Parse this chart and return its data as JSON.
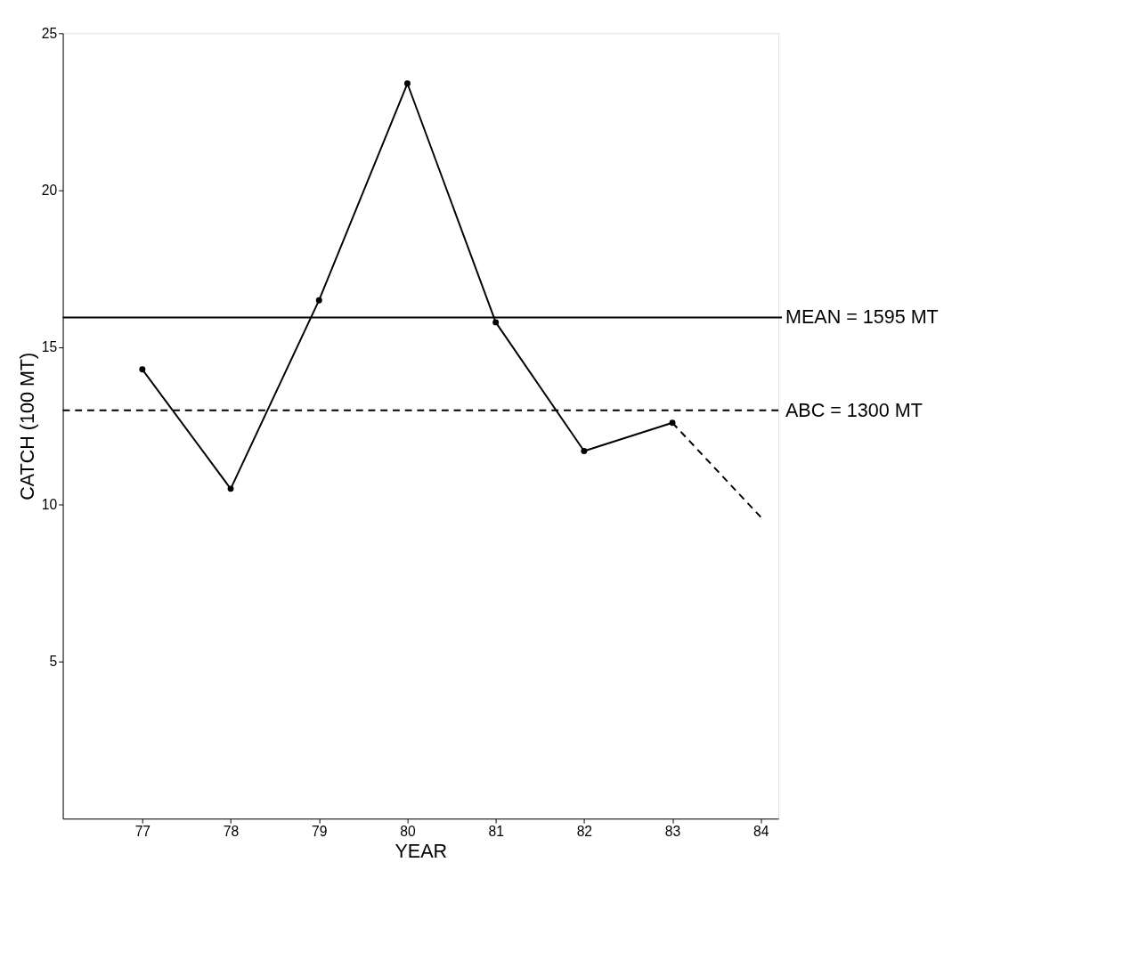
{
  "chart_data": {
    "type": "line",
    "xlabel": "YEAR",
    "ylabel": "CATCH (100 MT)",
    "xlim": [
      76.1,
      84.2
    ],
    "xticks": [
      77,
      78,
      79,
      80,
      81,
      82,
      83,
      84
    ],
    "ylim": [
      0,
      25
    ],
    "yticks": [
      5,
      10,
      15,
      20,
      25
    ],
    "grid": false,
    "series": [
      {
        "color": "#000000",
        "x": [
          77,
          78,
          79,
          80,
          81,
          82,
          83
        ],
        "values": [
          14.3,
          10.5,
          16.5,
          23.4,
          15.8,
          11.7,
          12.6
        ],
        "line_style": "solid",
        "marker": "circle"
      },
      {
        "color": "#000000",
        "x": [
          83,
          84
        ],
        "values": [
          12.6,
          9.6
        ],
        "line_style": "dashed",
        "marker": "none"
      }
    ],
    "ref_lines": [
      {
        "axis": "y",
        "value": 15.95,
        "label": "MEAN = 1595 MT",
        "line_style": "solid",
        "color": "#000000"
      },
      {
        "axis": "y",
        "value": 13.0,
        "label": "ABC = 1300 MT",
        "line_style": "dashed",
        "color": "#000000"
      }
    ]
  }
}
